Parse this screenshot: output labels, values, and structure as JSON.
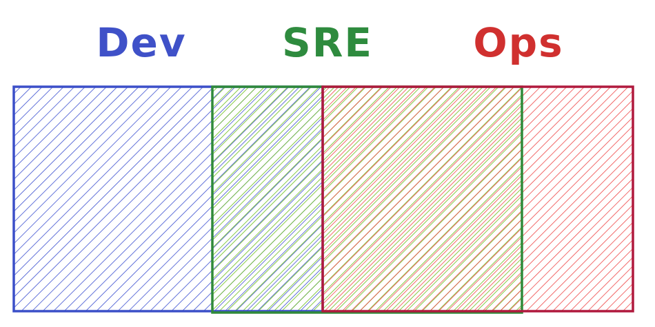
{
  "nodes": [
    {
      "label": "Dev"
    },
    {
      "label": "SRE"
    },
    {
      "label": "Ops"
    }
  ]
}
